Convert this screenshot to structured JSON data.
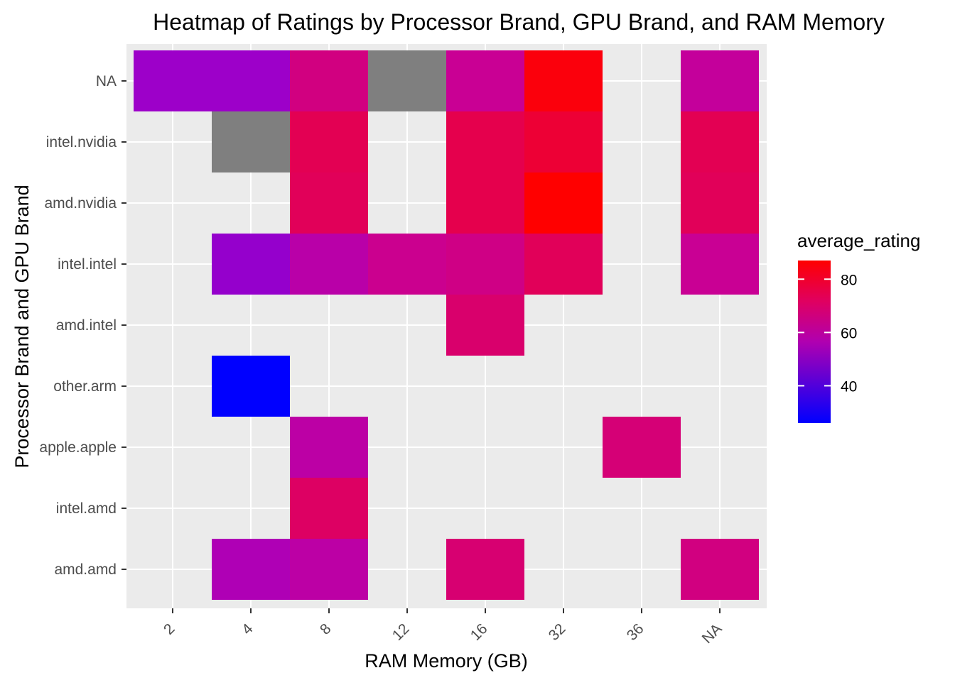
{
  "chart_data": {
    "type": "heatmap",
    "title": "Heatmap of Ratings by Processor Brand, GPU Brand, and RAM Memory",
    "xlabel": "RAM Memory (GB)",
    "ylabel": "Processor Brand and GPU Brand",
    "x_categories": [
      "2",
      "4",
      "8",
      "12",
      "16",
      "32",
      "36",
      "NA"
    ],
    "y_categories": [
      "NA",
      "intel.nvidia",
      "amd.nvidia",
      "intel.intel",
      "amd.intel",
      "other.arm",
      "apple.apple",
      "intel.amd",
      "amd.amd"
    ],
    "cells": [
      {
        "x": "2",
        "y": "NA",
        "value": 44
      },
      {
        "x": "4",
        "y": "NA",
        "value": 44
      },
      {
        "x": "8",
        "y": "NA",
        "value": 64
      },
      {
        "x": "12",
        "y": "NA",
        "value": null
      },
      {
        "x": "16",
        "y": "NA",
        "value": 60
      },
      {
        "x": "32",
        "y": "NA",
        "value": 85
      },
      {
        "x": "NA",
        "y": "NA",
        "value": 58
      },
      {
        "x": "4",
        "y": "intel.nvidia",
        "value": null
      },
      {
        "x": "8",
        "y": "intel.nvidia",
        "value": 73
      },
      {
        "x": "16",
        "y": "intel.nvidia",
        "value": 74
      },
      {
        "x": "32",
        "y": "intel.nvidia",
        "value": 78
      },
      {
        "x": "NA",
        "y": "intel.nvidia",
        "value": 73
      },
      {
        "x": "8",
        "y": "amd.nvidia",
        "value": 72
      },
      {
        "x": "16",
        "y": "amd.nvidia",
        "value": 74
      },
      {
        "x": "32",
        "y": "amd.nvidia",
        "value": 87
      },
      {
        "x": "NA",
        "y": "amd.nvidia",
        "value": 72
      },
      {
        "x": "4",
        "y": "intel.intel",
        "value": 43
      },
      {
        "x": "8",
        "y": "intel.intel",
        "value": 54
      },
      {
        "x": "12",
        "y": "intel.intel",
        "value": 61
      },
      {
        "x": "16",
        "y": "intel.intel",
        "value": 63
      },
      {
        "x": "32",
        "y": "intel.intel",
        "value": 72
      },
      {
        "x": "NA",
        "y": "intel.intel",
        "value": 60
      },
      {
        "x": "16",
        "y": "amd.intel",
        "value": 68
      },
      {
        "x": "4",
        "y": "other.arm",
        "value": 26
      },
      {
        "x": "8",
        "y": "apple.apple",
        "value": 55
      },
      {
        "x": "36",
        "y": "apple.apple",
        "value": 66
      },
      {
        "x": "8",
        "y": "intel.amd",
        "value": 70
      },
      {
        "x": "4",
        "y": "amd.amd",
        "value": 50
      },
      {
        "x": "8",
        "y": "amd.amd",
        "value": 55
      },
      {
        "x": "16",
        "y": "amd.amd",
        "value": 67
      },
      {
        "x": "NA",
        "y": "amd.amd",
        "value": 64
      }
    ],
    "na_color": "#7f7f7f",
    "color_scale": {
      "low": "#0000ff",
      "mid": "#cc0088",
      "high": "#ff0000",
      "min": 26,
      "max": 87
    },
    "legend": {
      "title": "average_rating",
      "ticks": [
        40,
        60,
        80
      ],
      "position": "right"
    },
    "grid": true,
    "panel_background": "#ebebeb"
  }
}
